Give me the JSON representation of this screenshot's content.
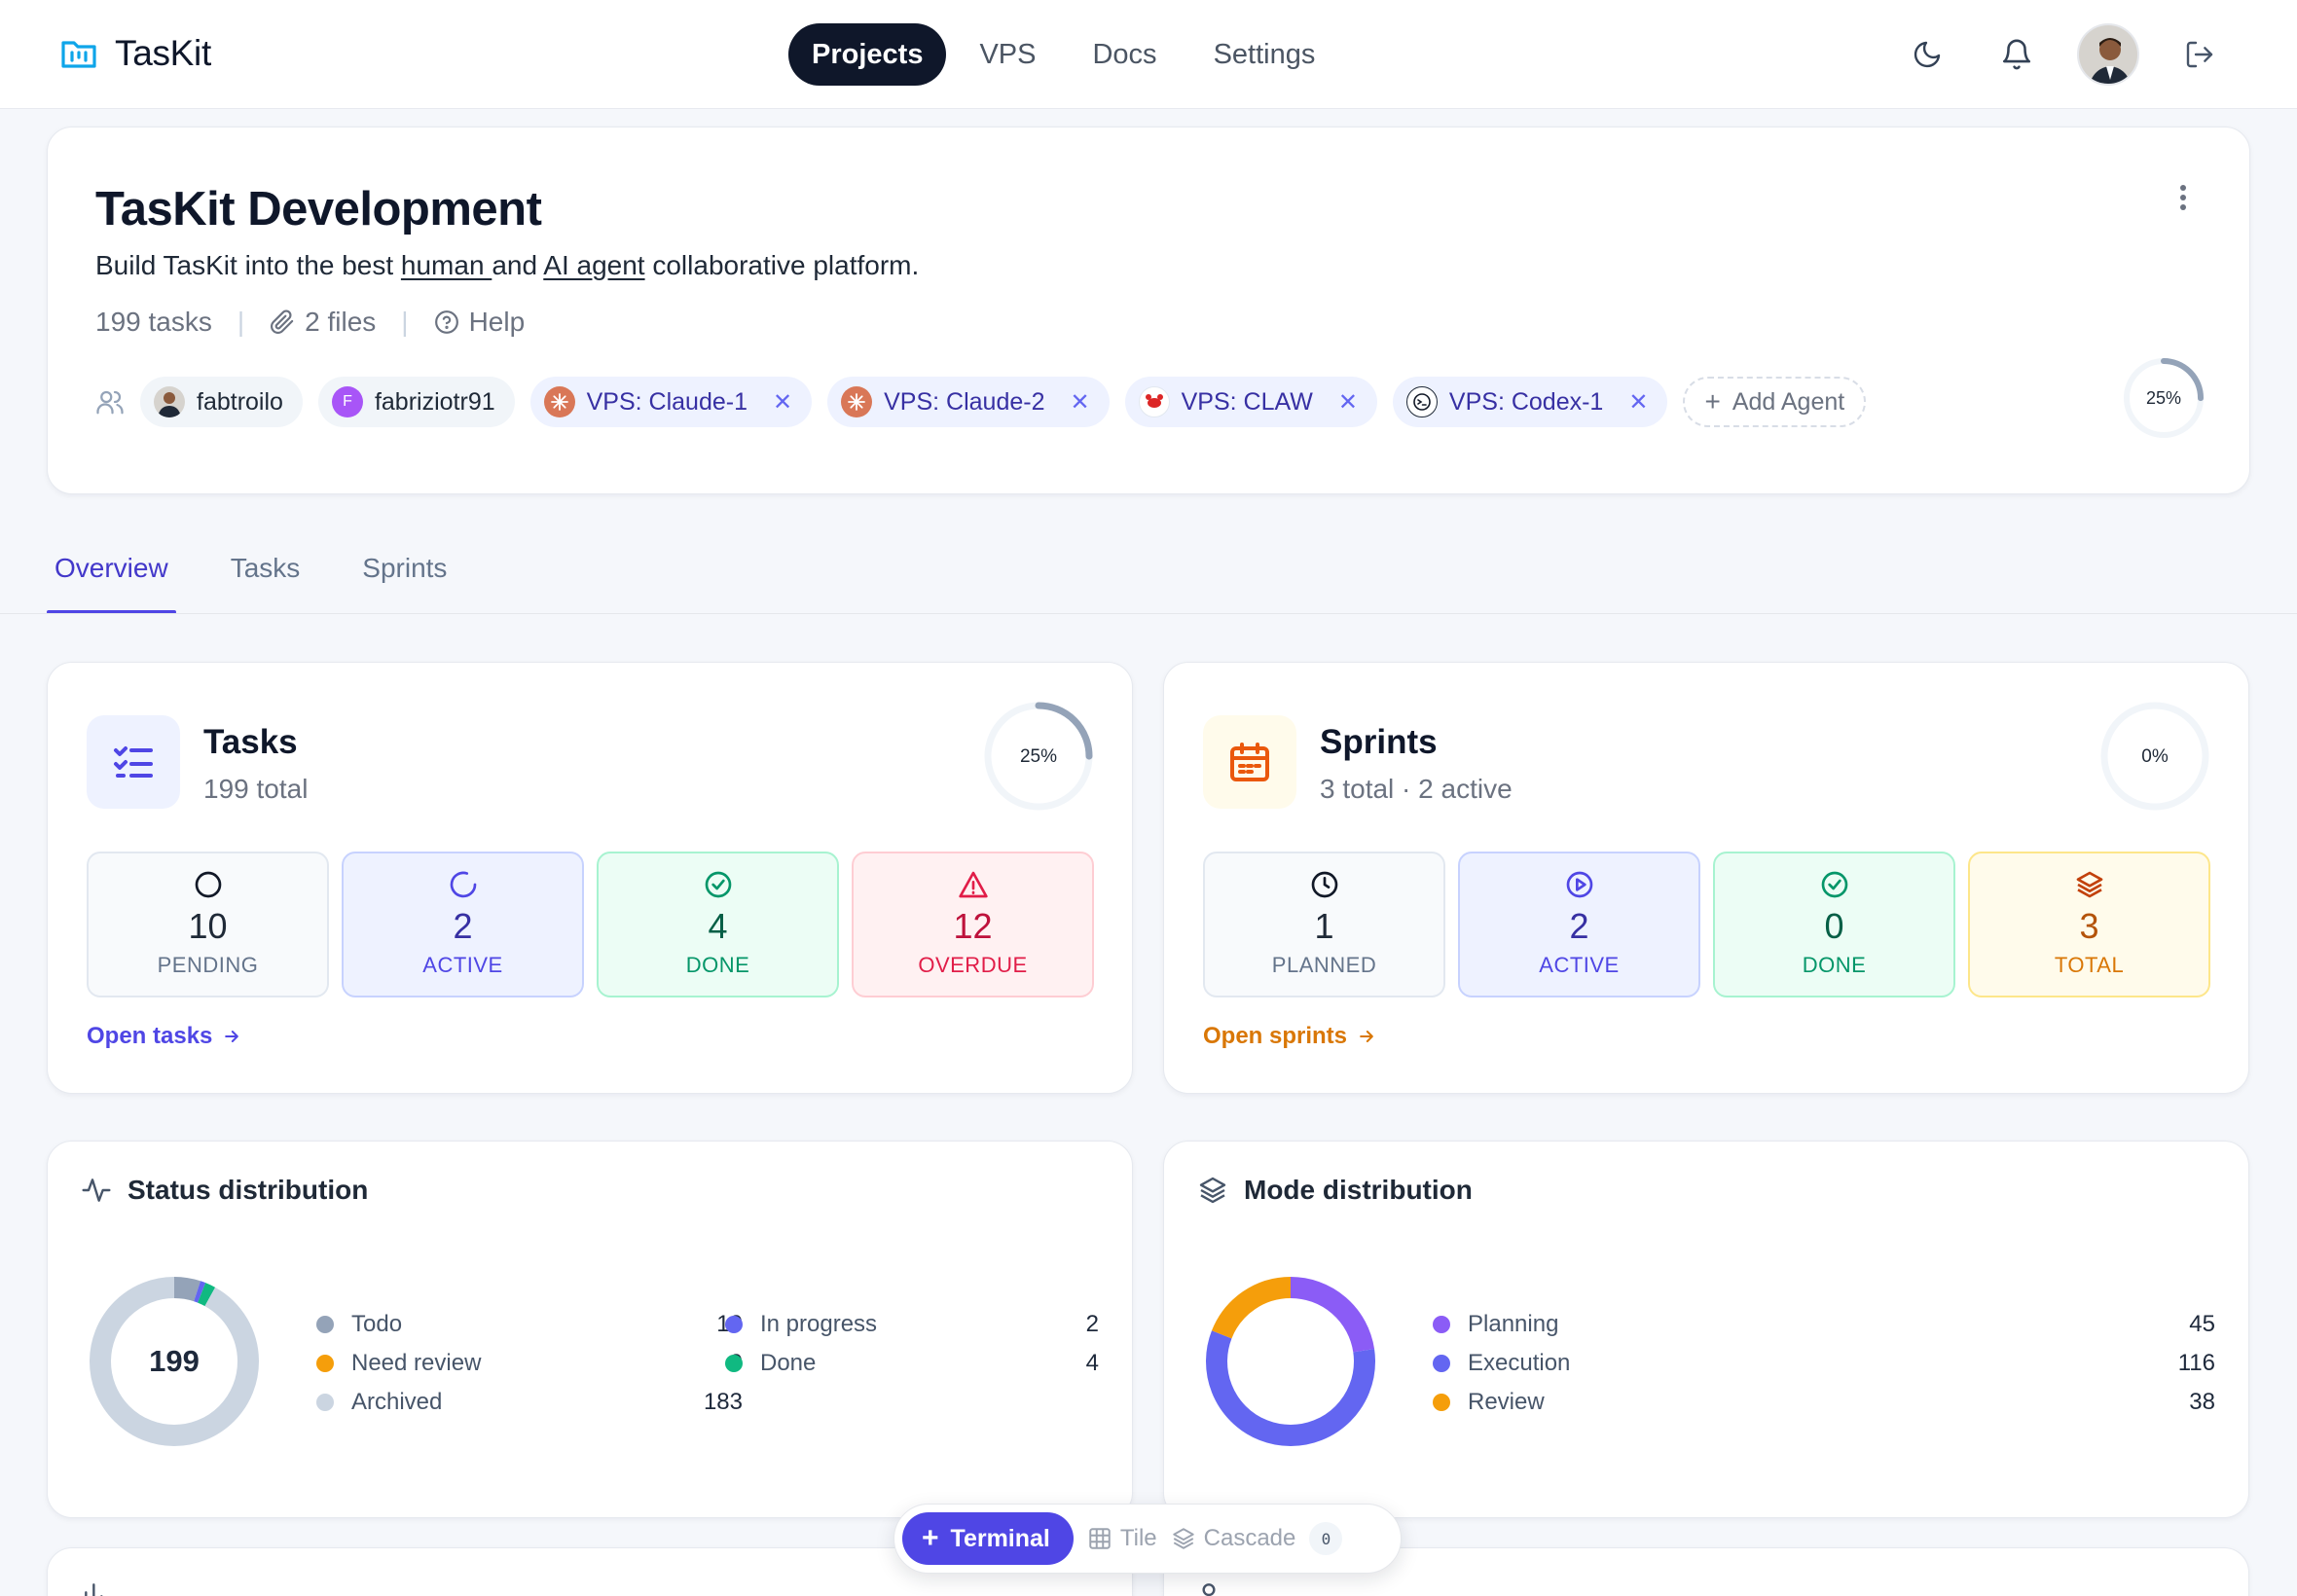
{
  "app": {
    "name": "TasKit"
  },
  "nav": {
    "items": [
      "Projects",
      "VPS",
      "Docs",
      "Settings"
    ],
    "active": "Projects"
  },
  "project": {
    "title": "TasKit Development",
    "desc_pre": "Build TasKit into the best ",
    "desc_human": "human ",
    "desc_mid": "and ",
    "desc_ai": "AI agent",
    "desc_post": " collaborative platform.",
    "tasks_count": "199 tasks",
    "files": "2 files",
    "help": "Help",
    "progress": "25%",
    "progress_value": 0.25,
    "members": [
      {
        "name": "fabtroilo",
        "type": "user"
      },
      {
        "name": "fabriziotr91",
        "type": "user",
        "initial": "F"
      }
    ],
    "agents": [
      {
        "name": "VPS: Claude-1"
      },
      {
        "name": "VPS: Claude-2"
      },
      {
        "name": "VPS: CLAW"
      },
      {
        "name": "VPS: Codex-1"
      }
    ],
    "add_agent": "Add Agent"
  },
  "tabs": [
    "Overview",
    "Tasks",
    "Sprints"
  ],
  "tasks_card": {
    "title": "Tasks",
    "subtitle": "199 total",
    "progress": "25%",
    "progress_value": 0.25,
    "stats": [
      {
        "value": "10",
        "label": "PENDING"
      },
      {
        "value": "2",
        "label": "ACTIVE"
      },
      {
        "value": "4",
        "label": "DONE"
      },
      {
        "value": "12",
        "label": "OVERDUE"
      }
    ],
    "link": "Open tasks"
  },
  "sprints_card": {
    "title": "Sprints",
    "subtitle": "3 total · 2 active",
    "progress": "0%",
    "progress_value": 0,
    "stats": [
      {
        "value": "1",
        "label": "PLANNED"
      },
      {
        "value": "2",
        "label": "ACTIVE"
      },
      {
        "value": "0",
        "label": "DONE"
      },
      {
        "value": "3",
        "label": "TOTAL"
      }
    ],
    "link": "Open sprints"
  },
  "status_dist": {
    "title": "Status distribution",
    "total": "199",
    "items": [
      {
        "name": "Todo",
        "value": "10",
        "color": "#94a3b8"
      },
      {
        "name": "In progress",
        "value": "2",
        "color": "#6366f1"
      },
      {
        "name": "Need review",
        "value": "0",
        "color": "#f59e0b"
      },
      {
        "name": "Done",
        "value": "4",
        "color": "#10b981"
      },
      {
        "name": "Archived",
        "value": "183",
        "color": "#cbd5e1"
      }
    ]
  },
  "mode_dist": {
    "title": "Mode distribution",
    "items": [
      {
        "name": "Planning",
        "value": "45",
        "color": "#8b5cf6"
      },
      {
        "name": "Execution",
        "value": "116",
        "color": "#6366f1"
      },
      {
        "name": "Review",
        "value": "38",
        "color": "#f59e0b"
      }
    ]
  },
  "dock": {
    "terminal": "Terminal",
    "tile": "Tile",
    "cascade": "Cascade",
    "count": "0"
  }
}
